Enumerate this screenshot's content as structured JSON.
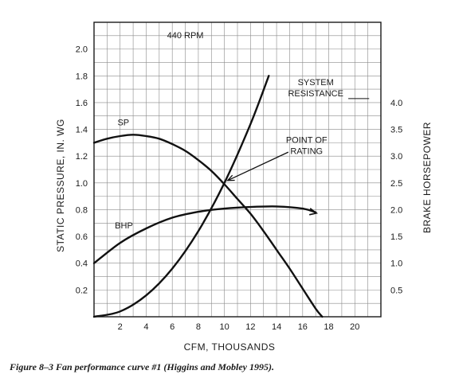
{
  "chart_data": {
    "type": "line",
    "title": "440 RPM",
    "xlabel": "CFM, THOUSANDS",
    "ylabel": "STATIC PRESSURE, IN. WG",
    "y2label": "BRAKE HORSEPOWER",
    "xlim": [
      0,
      22
    ],
    "ylim": [
      0,
      2.2
    ],
    "y2lim": [
      0,
      5.5
    ],
    "grid": true,
    "x_ticks": [
      2,
      4,
      6,
      8,
      10,
      12,
      14,
      16,
      18,
      20
    ],
    "y_ticks": [
      0.2,
      0.4,
      0.6,
      0.8,
      1.0,
      1.2,
      1.4,
      1.6,
      1.8,
      2.0
    ],
    "y2_ticks": [
      0.5,
      1.0,
      1.5,
      2.0,
      2.5,
      3.0,
      3.5,
      4.0
    ],
    "x_tick_labels": [
      "2",
      "4",
      "6",
      "8",
      "10",
      "12",
      "14",
      "16",
      "18",
      "20"
    ],
    "y_tick_labels": [
      "0.2",
      "0.4",
      "0.6",
      "0.8",
      "1.0",
      "1.2",
      "1.4",
      "1.6",
      "1.8",
      "2.0"
    ],
    "y2_tick_labels": [
      "0.5",
      "1.0",
      "1.5",
      "2.0",
      "2.5",
      "3.0",
      "3.5",
      "4.0"
    ],
    "series": [
      {
        "name": "SP",
        "axis": "left",
        "x": [
          0,
          1,
          2,
          3,
          4,
          5,
          6,
          7,
          8,
          9,
          10,
          11,
          12,
          13,
          14,
          15,
          16,
          17,
          17.5
        ],
        "y": [
          1.3,
          1.33,
          1.35,
          1.36,
          1.35,
          1.33,
          1.29,
          1.24,
          1.17,
          1.09,
          0.99,
          0.88,
          0.77,
          0.64,
          0.5,
          0.36,
          0.21,
          0.06,
          0.0
        ]
      },
      {
        "name": "BHP",
        "axis": "right",
        "x": [
          0,
          2,
          4,
          6,
          8,
          10,
          12,
          14,
          16,
          17
        ],
        "y": [
          1.0,
          1.38,
          1.65,
          1.85,
          1.96,
          2.02,
          2.05,
          2.06,
          2.02,
          1.95
        ]
      },
      {
        "name": "SYSTEM RESISTANCE",
        "axis": "left",
        "x": [
          0,
          2,
          4,
          6,
          8,
          10,
          12,
          13.4
        ],
        "y": [
          0,
          0.04,
          0.16,
          0.36,
          0.64,
          1.0,
          1.44,
          1.8
        ]
      }
    ],
    "annotations": [
      {
        "text": "SP",
        "x": 1.8,
        "y": 1.43
      },
      {
        "text": "BHP",
        "x": 1.6,
        "y": 0.66
      },
      {
        "text_lines": [
          "SYSTEM",
          "RESISTANCE"
        ],
        "x": 17,
        "y": 1.73
      },
      {
        "text_lines": [
          "POINT OF",
          "RATING"
        ],
        "x": 16.3,
        "y": 1.3
      }
    ],
    "point_of_rating": {
      "x": 10,
      "y": 1.0
    }
  },
  "caption": "Figure 8–3  Fan performance curve #1 (Higgins and Mobley 1995)."
}
